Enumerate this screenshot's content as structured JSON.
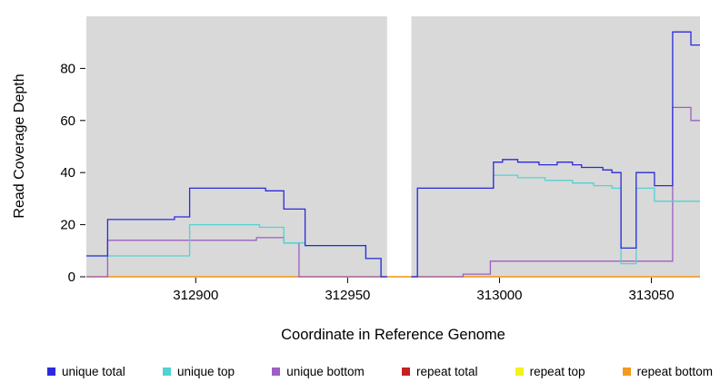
{
  "chart_data": {
    "type": "line",
    "subtype": "step-coverage",
    "title": "",
    "xlabel": "Coordinate in Reference Genome",
    "ylabel": "Read Coverage Depth",
    "xlim": [
      312864,
      313066
    ],
    "ylim": [
      0,
      100
    ],
    "x_ticks": [
      312900,
      312950,
      313000,
      313050
    ],
    "y_ticks": [
      0,
      20,
      40,
      60,
      80
    ],
    "plot_background": "#d9d9d9",
    "no_data_gap": [
      312963,
      312971
    ],
    "legend_position": "bottom",
    "grid": "off",
    "draw_order": [
      3,
      4,
      5,
      2,
      1,
      0
    ],
    "series": [
      {
        "name": "unique total",
        "color": "#2b2bdb",
        "segments": [
          [
            [
              312864,
              8
            ],
            [
              312871,
              22
            ],
            [
              312893,
              23
            ],
            [
              312898,
              34
            ],
            [
              312923,
              33
            ],
            [
              312929,
              26
            ],
            [
              312936,
              12
            ],
            [
              312956,
              7
            ],
            [
              312961,
              0
            ],
            [
              312963,
              0
            ]
          ],
          [
            [
              312971,
              0
            ],
            [
              312973,
              34
            ],
            [
              312998,
              44
            ],
            [
              313001,
              45
            ],
            [
              313006,
              44
            ],
            [
              313013,
              43
            ],
            [
              313019,
              44
            ],
            [
              313024,
              43
            ],
            [
              313027,
              42
            ],
            [
              313034,
              41
            ],
            [
              313037,
              40
            ],
            [
              313040,
              11
            ],
            [
              313045,
              40
            ],
            [
              313051,
              35
            ],
            [
              313057,
              94
            ],
            [
              313063,
              89
            ],
            [
              313066,
              89
            ]
          ]
        ]
      },
      {
        "name": "unique top",
        "color": "#53d2d2",
        "segments": [
          [
            [
              312864,
              8
            ],
            [
              312898,
              20
            ],
            [
              312921,
              19
            ],
            [
              312929,
              13
            ],
            [
              312936,
              12
            ],
            [
              312956,
              7
            ],
            [
              312961,
              0
            ],
            [
              312963,
              0
            ]
          ],
          [
            [
              312971,
              0
            ],
            [
              312973,
              34
            ],
            [
              312998,
              39
            ],
            [
              313006,
              38
            ],
            [
              313015,
              37
            ],
            [
              313024,
              36
            ],
            [
              313031,
              35
            ],
            [
              313037,
              34
            ],
            [
              313040,
              5
            ],
            [
              313045,
              34
            ],
            [
              313051,
              29
            ],
            [
              313066,
              29
            ]
          ]
        ]
      },
      {
        "name": "unique bottom",
        "color": "#9c5fc4",
        "segments": [
          [
            [
              312864,
              0
            ],
            [
              312871,
              14
            ],
            [
              312920,
              15
            ],
            [
              312929,
              13
            ],
            [
              312934,
              0
            ],
            [
              312963,
              0
            ]
          ],
          [
            [
              312971,
              0
            ],
            [
              312988,
              1
            ],
            [
              312997,
              6
            ],
            [
              313057,
              65
            ],
            [
              313063,
              60
            ],
            [
              313066,
              60
            ]
          ]
        ]
      },
      {
        "name": "repeat total",
        "color": "#c42222",
        "segments": [
          [
            [
              312864,
              0
            ],
            [
              313066,
              0
            ]
          ]
        ]
      },
      {
        "name": "repeat top",
        "color": "#f2f21e",
        "segments": [
          [
            [
              312864,
              0
            ],
            [
              313066,
              0
            ]
          ]
        ]
      },
      {
        "name": "repeat bottom",
        "color": "#f5991f",
        "segments": [
          [
            [
              312864,
              0
            ],
            [
              313066,
              0
            ]
          ]
        ]
      }
    ]
  }
}
